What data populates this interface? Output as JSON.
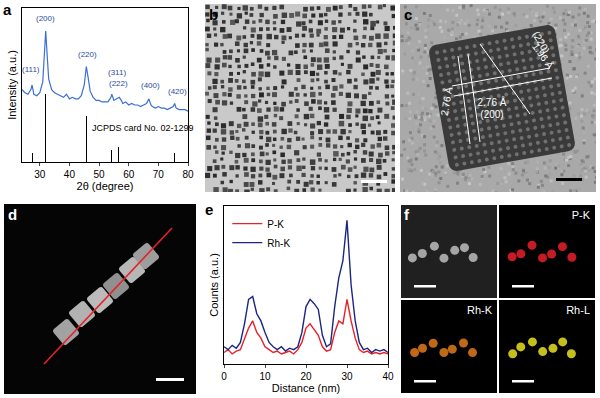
{
  "chart_data": [
    {
      "panel": "a",
      "type": "line",
      "x_label": "2θ (degree)",
      "y_label": "Intensity (a.u.)",
      "color": "#3b6fd6",
      "x": [
        24,
        25,
        26,
        27,
        27.4,
        28,
        29,
        30,
        31,
        31.5,
        32,
        32.5,
        33,
        34,
        35,
        36,
        37,
        38,
        39,
        40,
        41,
        42,
        43,
        44,
        45,
        45.7,
        46.3,
        47,
        48,
        49,
        50,
        51,
        52,
        53,
        54,
        54.3,
        55,
        56,
        56.8,
        57.5,
        58,
        59,
        60,
        61,
        62,
        63,
        64,
        65,
        66,
        66.8,
        67.5,
        68,
        69,
        70,
        71,
        72,
        73,
        74,
        75,
        75.5,
        76,
        77,
        78,
        79,
        80
      ],
      "values": [
        47,
        45,
        44,
        47,
        50,
        44,
        43,
        45,
        52,
        66,
        85,
        69,
        54,
        47,
        45,
        44,
        43,
        42,
        44,
        41,
        42,
        41,
        41,
        43,
        50,
        62,
        55,
        46,
        42,
        40,
        40,
        39,
        39,
        39,
        42,
        44,
        40,
        41,
        42,
        40,
        38,
        39,
        37,
        38,
        37,
        37,
        36,
        37,
        38,
        41,
        37,
        36,
        35,
        36,
        35,
        35,
        34,
        35,
        36,
        38,
        35,
        34,
        34,
        34,
        33
      ],
      "xlim": [
        24,
        80
      ],
      "xticks": [
        30,
        40,
        50,
        60,
        70,
        80
      ],
      "ylim": [
        0,
        100
      ],
      "tick_labels": "x",
      "reference": {
        "label": "JCPDS card No. 02-1299",
        "color": "#000000",
        "x": [
          27.4,
          31.9,
          45.7,
          54.1,
          56.7,
          66.5,
          75.5
        ],
        "values": [
          6,
          44,
          30,
          8,
          10,
          10,
          6
        ]
      },
      "annotations": [
        {
          "text": "(111)",
          "x": 27.2,
          "y": 60
        },
        {
          "text": "(200)",
          "x": 32,
          "y": 93
        },
        {
          "text": "(220)",
          "x": 46.2,
          "y": 70
        },
        {
          "text": "(311)",
          "x": 56,
          "y": 58
        },
        {
          "text": "(222)",
          "x": 56.5,
          "y": 51
        },
        {
          "text": "(400)",
          "x": 67.5,
          "y": 50
        },
        {
          "text": "(420)",
          "x": 76.5,
          "y": 46
        }
      ]
    },
    {
      "panel": "e",
      "type": "line",
      "x_label": "Distance (nm)",
      "y_label": "Counts (a.u.)",
      "x": [
        0,
        1,
        2,
        3,
        4,
        5,
        6,
        7,
        8,
        9,
        10,
        11,
        12,
        13,
        14,
        15,
        16,
        17,
        18,
        19,
        20,
        21,
        22,
        23,
        24,
        25,
        26,
        27,
        28,
        29,
        30,
        31,
        32,
        33,
        34,
        35,
        36,
        37,
        38,
        39,
        40
      ],
      "series": [
        {
          "name": "P-K",
          "color": "#e8202a",
          "values": [
            0.08,
            0.1,
            0.07,
            0.09,
            0.1,
            0.18,
            0.25,
            0.3,
            0.22,
            0.18,
            0.12,
            0.1,
            0.08,
            0.09,
            0.07,
            0.08,
            0.09,
            0.07,
            0.1,
            0.15,
            0.25,
            0.28,
            0.24,
            0.2,
            0.12,
            0.09,
            0.1,
            0.22,
            0.3,
            0.28,
            0.45,
            0.3,
            0.18,
            0.1,
            0.08,
            0.09,
            0.07,
            0.08,
            0.07,
            0.08,
            0.07
          ]
        },
        {
          "name": "Rh-K",
          "color": "#1c2580",
          "values": [
            0.12,
            0.1,
            0.13,
            0.11,
            0.15,
            0.28,
            0.45,
            0.47,
            0.35,
            0.3,
            0.22,
            0.15,
            0.12,
            0.1,
            0.12,
            0.09,
            0.11,
            0.1,
            0.12,
            0.22,
            0.4,
            0.45,
            0.42,
            0.38,
            0.2,
            0.12,
            0.14,
            0.4,
            0.6,
            0.72,
            1.0,
            0.55,
            0.3,
            0.15,
            0.1,
            0.11,
            0.08,
            0.1,
            0.09,
            0.1,
            0.08
          ]
        }
      ],
      "xlim": [
        0,
        40
      ],
      "xticks": [
        0,
        10,
        20,
        30,
        40
      ],
      "ylim": [
        0,
        1.1
      ],
      "tick_labels": "x",
      "legend": "upper left"
    }
  ],
  "images": [
    {
      "panel": "b"
    },
    {
      "panel": "c",
      "labels": [
        "2.76 Å",
        "(220)",
        "1.96 Å",
        "2.76 Å",
        "(200)"
      ]
    },
    {
      "panel": "d"
    },
    {
      "panel": "f",
      "maps": [
        "P-K",
        "Rh-K",
        "Rh-L"
      ]
    }
  ]
}
